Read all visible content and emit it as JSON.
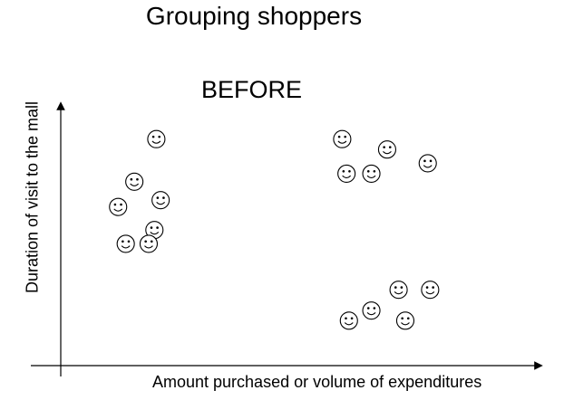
{
  "chart_data": {
    "type": "scatter",
    "title": "Grouping shoppers",
    "subtitle": "BEFORE",
    "xlabel": "Amount purchased or volume of expenditures",
    "ylabel": "Duration of visit to the mall",
    "xlim": [
      0,
      100
    ],
    "ylim": [
      0,
      100
    ],
    "grid": false,
    "marker": "smiley-icon",
    "series": [
      {
        "points": [
          {
            "x": 20.0,
            "y": 87.2
          },
          {
            "x": 15.4,
            "y": 70.8
          },
          {
            "x": 12.0,
            "y": 61.1
          },
          {
            "x": 20.9,
            "y": 63.7
          },
          {
            "x": 19.6,
            "y": 52.2
          },
          {
            "x": 13.6,
            "y": 46.9
          },
          {
            "x": 18.4,
            "y": 46.9
          },
          {
            "x": 58.9,
            "y": 87.2
          },
          {
            "x": 68.3,
            "y": 83.2
          },
          {
            "x": 59.8,
            "y": 73.9
          },
          {
            "x": 65.0,
            "y": 73.9
          },
          {
            "x": 76.8,
            "y": 77.9
          },
          {
            "x": 70.7,
            "y": 29.2
          },
          {
            "x": 77.3,
            "y": 29.2
          },
          {
            "x": 65.0,
            "y": 21.2
          },
          {
            "x": 60.3,
            "y": 17.3
          },
          {
            "x": 72.1,
            "y": 17.3
          }
        ]
      }
    ]
  }
}
